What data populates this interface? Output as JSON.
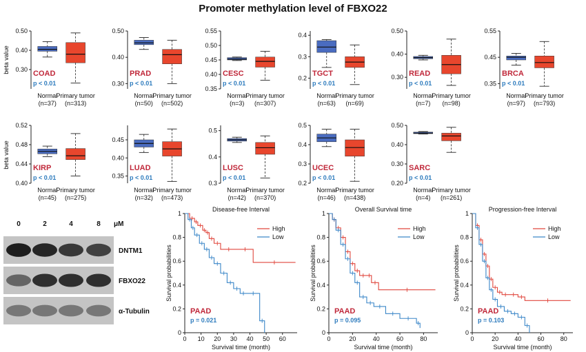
{
  "figure_title": "Promoter methylation level of FBXO22",
  "colors": {
    "normal": "#4a6cc0",
    "tumor": "#e8462d",
    "high": "#e0463c",
    "low": "#3a86c8",
    "cancer_label": "#c0283a",
    "pval": "#2d7bbd"
  },
  "y_axis_label": "beta value",
  "chart_data": [
    {
      "type": "box",
      "cancer": "COAD",
      "p": "p < 0.01",
      "ylim": [
        0.2,
        0.5
      ],
      "ticks": [
        0.3,
        0.4,
        0.5
      ],
      "tick_labels": [
        "0.30",
        "0.40",
        "0.50"
      ],
      "groups": [
        {
          "name": "Normal",
          "n": "(n=37)",
          "min": 0.365,
          "q1": 0.395,
          "median": 0.405,
          "q3": 0.42,
          "max": 0.445
        },
        {
          "name": "Primary tumor",
          "n": "(n=313)",
          "min": 0.23,
          "q1": 0.335,
          "median": 0.38,
          "q3": 0.44,
          "max": 0.49
        }
      ]
    },
    {
      "type": "box",
      "cancer": "PRAD",
      "p": "p < 0.01",
      "ylim": [
        0.28,
        0.5
      ],
      "ticks": [
        0.3,
        0.4,
        0.5
      ],
      "tick_labels": [
        "0.30",
        "0.40",
        "0.50"
      ],
      "groups": [
        {
          "name": "Normal",
          "n": "(n=50)",
          "min": 0.43,
          "q1": 0.448,
          "median": 0.455,
          "q3": 0.465,
          "max": 0.475
        },
        {
          "name": "Primary tumor",
          "n": "(n=502)",
          "min": 0.3,
          "q1": 0.375,
          "median": 0.41,
          "q3": 0.43,
          "max": 0.465
        }
      ]
    },
    {
      "type": "box",
      "cancer": "CESC",
      "p": "p < 0.01",
      "ylim": [
        0.35,
        0.55
      ],
      "ticks": [
        0.35,
        0.4,
        0.45,
        0.5,
        0.55
      ],
      "tick_labels": [
        "0.35",
        "0.40",
        "0.45",
        "0.50",
        "0.55"
      ],
      "groups": [
        {
          "name": "Normal",
          "n": "(n=3)",
          "min": 0.448,
          "q1": 0.45,
          "median": 0.453,
          "q3": 0.458,
          "max": 0.46
        },
        {
          "name": "Primary tumor",
          "n": "(n=307)",
          "min": 0.38,
          "q1": 0.425,
          "median": 0.445,
          "q3": 0.46,
          "max": 0.48
        }
      ]
    },
    {
      "type": "box",
      "cancer": "TGCT",
      "p": "p < 0.01",
      "ylim": [
        0.15,
        0.42
      ],
      "ticks": [
        0.2,
        0.3,
        0.4
      ],
      "tick_labels": [
        "0.2",
        "0.3",
        "0.4"
      ],
      "groups": [
        {
          "name": "Normal",
          "n": "(n=63)",
          "min": 0.25,
          "q1": 0.32,
          "median": 0.345,
          "q3": 0.375,
          "max": 0.38
        },
        {
          "name": "Primary tumor",
          "n": "(n=69)",
          "min": 0.17,
          "q1": 0.25,
          "median": 0.275,
          "q3": 0.3,
          "max": 0.355
        }
      ]
    },
    {
      "type": "box",
      "cancer": "READ",
      "p": "p < 0.01",
      "ylim": [
        0.25,
        0.5
      ],
      "ticks": [
        0.3,
        0.4,
        0.5
      ],
      "tick_labels": [
        "0.30",
        "0.40",
        "0.50"
      ],
      "groups": [
        {
          "name": "Normal",
          "n": "(n=7)",
          "min": 0.375,
          "q1": 0.38,
          "median": 0.385,
          "q3": 0.39,
          "max": 0.395
        },
        {
          "name": "Primary tumor",
          "n": "(n=98)",
          "min": 0.265,
          "q1": 0.315,
          "median": 0.355,
          "q3": 0.395,
          "max": 0.465
        }
      ]
    },
    {
      "type": "box",
      "cancer": "BRCA",
      "p": "p < 0.01",
      "ylim": [
        0.33,
        0.55
      ],
      "ticks": [
        0.35,
        0.45,
        0.55
      ],
      "tick_labels": [
        "0.35",
        "0.45",
        "0.55"
      ],
      "groups": [
        {
          "name": "Normal",
          "n": "(n=97)",
          "min": 0.42,
          "q1": 0.44,
          "median": 0.45,
          "q3": 0.455,
          "max": 0.465
        },
        {
          "name": "Primary tumor",
          "n": "(n=793)",
          "min": 0.34,
          "q1": 0.41,
          "median": 0.43,
          "q3": 0.455,
          "max": 0.51
        }
      ]
    },
    {
      "type": "box",
      "cancer": "KIRP",
      "p": "p < 0.01",
      "ylim": [
        0.4,
        0.52
      ],
      "ticks": [
        0.4,
        0.44,
        0.48,
        0.52
      ],
      "tick_labels": [
        "0.40",
        "0.44",
        "0.48",
        "0.52"
      ],
      "groups": [
        {
          "name": "Normal",
          "n": "(n=45)",
          "min": 0.455,
          "q1": 0.461,
          "median": 0.466,
          "q3": 0.471,
          "max": 0.477
        },
        {
          "name": "Primary tumor",
          "n": "(n=275)",
          "min": 0.415,
          "q1": 0.449,
          "median": 0.457,
          "q3": 0.472,
          "max": 0.503
        }
      ]
    },
    {
      "type": "box",
      "cancer": "LUAD",
      "p": "p < 0.01",
      "ylim": [
        0.33,
        0.49
      ],
      "ticks": [
        0.35,
        0.4,
        0.45
      ],
      "tick_labels": [
        "0.35",
        "0.40",
        "0.45"
      ],
      "groups": [
        {
          "name": "Normal",
          "n": "(n=32)",
          "min": 0.415,
          "q1": 0.43,
          "median": 0.44,
          "q3": 0.45,
          "max": 0.465
        },
        {
          "name": "Primary tumor",
          "n": "(n=473)",
          "min": 0.335,
          "q1": 0.405,
          "median": 0.425,
          "q3": 0.445,
          "max": 0.48
        }
      ]
    },
    {
      "type": "box",
      "cancer": "LUSC",
      "p": "p < 0.01",
      "ylim": [
        0.3,
        0.52
      ],
      "ticks": [
        0.3,
        0.4,
        0.5
      ],
      "tick_labels": [
        "0.3",
        "0.4",
        "0.5"
      ],
      "groups": [
        {
          "name": "Normal",
          "n": "(n=42)",
          "min": 0.455,
          "q1": 0.46,
          "median": 0.465,
          "q3": 0.47,
          "max": 0.475
        },
        {
          "name": "Primary tumor",
          "n": "(n=370)",
          "min": 0.32,
          "q1": 0.41,
          "median": 0.435,
          "q3": 0.455,
          "max": 0.48
        }
      ]
    },
    {
      "type": "box",
      "cancer": "UCEC",
      "p": "p < 0.01",
      "ylim": [
        0.2,
        0.5
      ],
      "ticks": [
        0.2,
        0.3,
        0.4,
        0.5
      ],
      "tick_labels": [
        "0.2",
        "0.3",
        "0.4",
        "0.5"
      ],
      "groups": [
        {
          "name": "Normal",
          "n": "(n=46)",
          "min": 0.39,
          "q1": 0.415,
          "median": 0.435,
          "q3": 0.455,
          "max": 0.48
        },
        {
          "name": "Primary tumor",
          "n": "(n=438)",
          "min": 0.21,
          "q1": 0.34,
          "median": 0.385,
          "q3": 0.425,
          "max": 0.48
        }
      ]
    },
    {
      "type": "box",
      "cancer": "SARC",
      "p": "p < 0.01",
      "ylim": [
        0.2,
        0.5
      ],
      "ticks": [
        0.2,
        0.3,
        0.4,
        0.5
      ],
      "tick_labels": [
        "0.20",
        "0.30",
        "0.40",
        "0.50"
      ],
      "groups": [
        {
          "name": "Normal",
          "n": "(n=4)",
          "min": 0.455,
          "q1": 0.457,
          "median": 0.46,
          "q3": 0.465,
          "max": 0.468
        },
        {
          "name": "Primary tumor",
          "n": "(n=261)",
          "min": 0.36,
          "q1": 0.42,
          "median": 0.445,
          "q3": 0.46,
          "max": 0.49
        }
      ]
    },
    {
      "type": "line",
      "title": "Disease-free Interval",
      "cancer": "PAAD",
      "p": "p = 0.021",
      "xlabel": "Survival time (month)",
      "ylabel": "Survival probabilities",
      "xlim": [
        0,
        69
      ],
      "ylim": [
        0,
        1
      ],
      "xticks": [
        0,
        10,
        20,
        30,
        40,
        50,
        60
      ],
      "yticks": [
        0,
        0.2,
        0.4,
        0.6,
        0.8,
        1
      ],
      "series": [
        {
          "name": "High",
          "x": [
            0,
            3,
            6,
            8,
            11,
            13,
            15,
            18,
            22,
            32,
            42,
            68
          ],
          "y": [
            1,
            0.96,
            0.93,
            0.9,
            0.86,
            0.84,
            0.79,
            0.75,
            0.7,
            0.7,
            0.59,
            0.59
          ]
        },
        {
          "name": "Low",
          "x": [
            0,
            2,
            4,
            6,
            9,
            12,
            15,
            18,
            22,
            26,
            30,
            34,
            38,
            46,
            49
          ],
          "y": [
            1,
            0.95,
            0.88,
            0.82,
            0.75,
            0.7,
            0.63,
            0.58,
            0.5,
            0.42,
            0.37,
            0.33,
            0.33,
            0.1,
            0.0
          ]
        }
      ]
    },
    {
      "type": "line",
      "title": "Overall Survival time",
      "cancer": "PAAD",
      "p": "p = 0.095",
      "xlabel": "Survival time (month)",
      "ylabel": "Survival probabilities",
      "xlim": [
        0,
        92
      ],
      "ylim": [
        0,
        1
      ],
      "xticks": [
        0,
        20,
        40,
        60,
        80
      ],
      "yticks": [
        0,
        0.2,
        0.4,
        0.6,
        0.8,
        1
      ],
      "series": [
        {
          "name": "High",
          "x": [
            0,
            3,
            6,
            10,
            14,
            18,
            22,
            26,
            32,
            36,
            42,
            90
          ],
          "y": [
            1,
            0.95,
            0.88,
            0.8,
            0.68,
            0.58,
            0.52,
            0.48,
            0.48,
            0.42,
            0.36,
            0.36
          ]
        },
        {
          "name": "Low",
          "x": [
            0,
            3,
            6,
            10,
            14,
            18,
            22,
            26,
            32,
            38,
            48,
            60,
            74,
            77
          ],
          "y": [
            1,
            0.95,
            0.86,
            0.74,
            0.62,
            0.5,
            0.42,
            0.3,
            0.25,
            0.22,
            0.16,
            0.12,
            0.08,
            0.04
          ]
        }
      ]
    },
    {
      "type": "line",
      "title": "Progression-free Interval",
      "cancer": "PAAD",
      "p": "p = 0.103",
      "xlabel": "Survival time (month)",
      "ylabel": "Survival probabilities",
      "xlim": [
        0,
        88
      ],
      "ylim": [
        0,
        1
      ],
      "xticks": [
        0,
        20,
        40,
        60,
        80
      ],
      "yticks": [
        0,
        0.2,
        0.4,
        0.6,
        0.8,
        1
      ],
      "series": [
        {
          "name": "High",
          "x": [
            0,
            3,
            6,
            9,
            12,
            15,
            18,
            22,
            26,
            32,
            40,
            46,
            86
          ],
          "y": [
            1,
            0.9,
            0.78,
            0.66,
            0.56,
            0.45,
            0.38,
            0.34,
            0.32,
            0.32,
            0.3,
            0.27,
            0.27
          ]
        },
        {
          "name": "Low",
          "x": [
            0,
            3,
            6,
            9,
            12,
            15,
            18,
            22,
            28,
            34,
            40,
            46,
            50
          ],
          "y": [
            1,
            0.88,
            0.74,
            0.6,
            0.46,
            0.36,
            0.28,
            0.22,
            0.18,
            0.16,
            0.13,
            0.06,
            0.0
          ]
        }
      ]
    }
  ],
  "legend": {
    "high": "High",
    "low": "Low"
  },
  "western_blot": {
    "doses": [
      "0",
      "2",
      "4",
      "8"
    ],
    "unit": "μM",
    "proteins": [
      "DNTM1",
      "FBXO22",
      "α-Tubulin"
    ],
    "intensities": [
      [
        0.95,
        0.9,
        0.8,
        0.75
      ],
      [
        0.55,
        0.85,
        0.85,
        0.85
      ],
      [
        0.45,
        0.45,
        0.45,
        0.45
      ]
    ]
  }
}
